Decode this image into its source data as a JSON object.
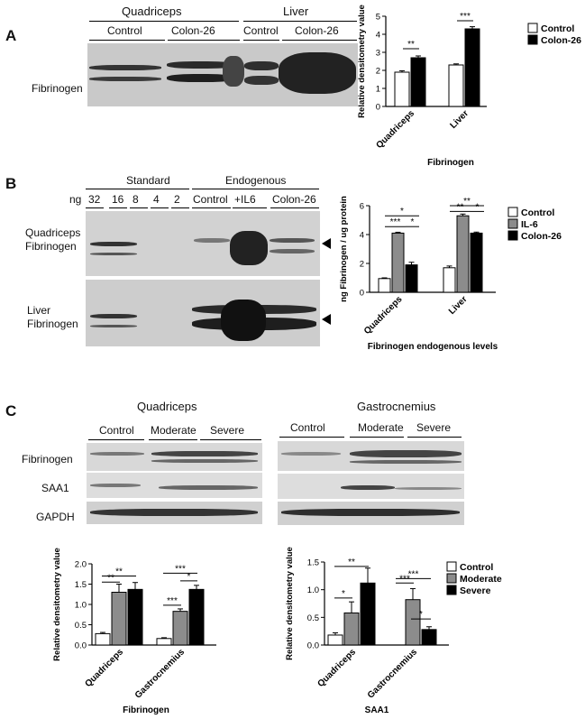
{
  "panelA": {
    "letter": "A",
    "groups": {
      "quadriceps": "Quadriceps",
      "liver": "Liver"
    },
    "subgroups": {
      "q_control": "Control",
      "q_c26": "Colon-26",
      "l_control": "Control",
      "l_c26": "Colon-26"
    },
    "row_label": "Fibrinogen"
  },
  "panelB": {
    "letter": "B",
    "groups": {
      "standard": "Standard",
      "endogenous": "Endogenous"
    },
    "ng_label": "ng",
    "standards": [
      "32",
      "16",
      "8",
      "4",
      "2"
    ],
    "endo_labels": [
      "Control",
      "+IL6",
      "Colon-26"
    ],
    "row1_line1": "Quadriceps",
    "row1_line2": "Fibrinogen",
    "row2_line1": "Liver",
    "row2_line2": "Fibrinogen"
  },
  "panelC": {
    "letter": "C",
    "quad_title": "Quadriceps",
    "gastro_title": "Gastrocnemius",
    "quad_groups": [
      "Control",
      "Moderate",
      "Severe"
    ],
    "gastro_groups": [
      "Control",
      "Moderate",
      "Severe"
    ],
    "rows": [
      "Fibrinogen",
      "SAA1",
      "GAPDH"
    ]
  },
  "colors": {
    "control": "#ffffff",
    "colon26": "#000000",
    "il6": "#8c8c8c",
    "moderate": "#8c8c8c",
    "severe": "#000000"
  },
  "chart_data": [
    {
      "id": "A",
      "type": "bar",
      "categories": [
        "Quadriceps",
        "Liver"
      ],
      "series": [
        {
          "name": "Control",
          "values": [
            1.9,
            2.3
          ],
          "errors": [
            0.08,
            0.06
          ]
        },
        {
          "name": "Colon-26",
          "values": [
            2.7,
            4.3
          ],
          "errors": [
            0.1,
            0.12
          ]
        }
      ],
      "xlabel": "Fibrinogen",
      "ylabel": "Relative densitometry value",
      "ylim": [
        0,
        5
      ],
      "yticks": [
        "0",
        "1",
        "2",
        "3",
        "4",
        "5"
      ],
      "significance": [
        "**",
        "***"
      ],
      "legend": "top-right"
    },
    {
      "id": "B",
      "type": "bar",
      "categories": [
        "Quadriceps",
        "Liver"
      ],
      "series": [
        {
          "name": "Control",
          "values": [
            0.95,
            1.7
          ],
          "errors": [
            0.05,
            0.12
          ]
        },
        {
          "name": "IL-6",
          "values": [
            4.1,
            5.3
          ],
          "errors": [
            0.06,
            0.12
          ]
        },
        {
          "name": "Colon-26",
          "values": [
            1.9,
            4.1
          ],
          "errors": [
            0.18,
            0.07
          ]
        }
      ],
      "xlabel": "Fibrinogen endogenous levels",
      "ylabel": "ng Fibrinogen / ug protein",
      "ylim": [
        0,
        6
      ],
      "yticks": [
        "0",
        "2",
        "4",
        "6"
      ],
      "significance": {
        "quadriceps": [
          "*",
          "***",
          "*"
        ],
        "liver": [
          "**",
          "**",
          "*"
        ]
      },
      "legend": "top-right"
    },
    {
      "id": "C-fibrinogen",
      "type": "bar",
      "categories": [
        "Quadriceps",
        "Gastrocnemius"
      ],
      "series": [
        {
          "name": "Control",
          "values": [
            0.28,
            0.16
          ],
          "errors": [
            0.03,
            0.02
          ]
        },
        {
          "name": "Moderate",
          "values": [
            1.3,
            0.83
          ],
          "errors": [
            0.2,
            0.06
          ]
        },
        {
          "name": "Severe",
          "values": [
            1.37,
            1.37
          ],
          "errors": [
            0.17,
            0.1
          ]
        }
      ],
      "xlabel": "Fibrinogen",
      "ylabel": "Relative densitometry value",
      "ylim": [
        0,
        2.0
      ],
      "yticks": [
        "0.0",
        "0.5",
        "1.0",
        "1.5",
        "2.0"
      ],
      "significance": {
        "quadriceps": [
          "**",
          "**"
        ],
        "gastrocnemius": [
          "***",
          "*",
          "***"
        ]
      }
    },
    {
      "id": "C-SAA1",
      "type": "bar",
      "categories": [
        "Quadriceps",
        "Gastrocnemius"
      ],
      "series": [
        {
          "name": "Control",
          "values": [
            0.18,
            0
          ],
          "errors": [
            0.04,
            0
          ]
        },
        {
          "name": "Moderate",
          "values": [
            0.58,
            0.82
          ],
          "errors": [
            0.2,
            0.2
          ]
        },
        {
          "name": "Severe",
          "values": [
            1.12,
            0.28
          ],
          "errors": [
            0.27,
            0.05
          ]
        }
      ],
      "xlabel": "SAA1",
      "ylabel": "Relative densitometry value",
      "ylim": [
        0,
        1.5
      ],
      "yticks": [
        "0.0",
        "0.5",
        "1.0",
        "1.5"
      ],
      "significance": {
        "quadriceps": [
          "*",
          "**"
        ],
        "gastrocnemius": [
          "***",
          "***",
          "*"
        ]
      },
      "legend": "top-right"
    }
  ]
}
